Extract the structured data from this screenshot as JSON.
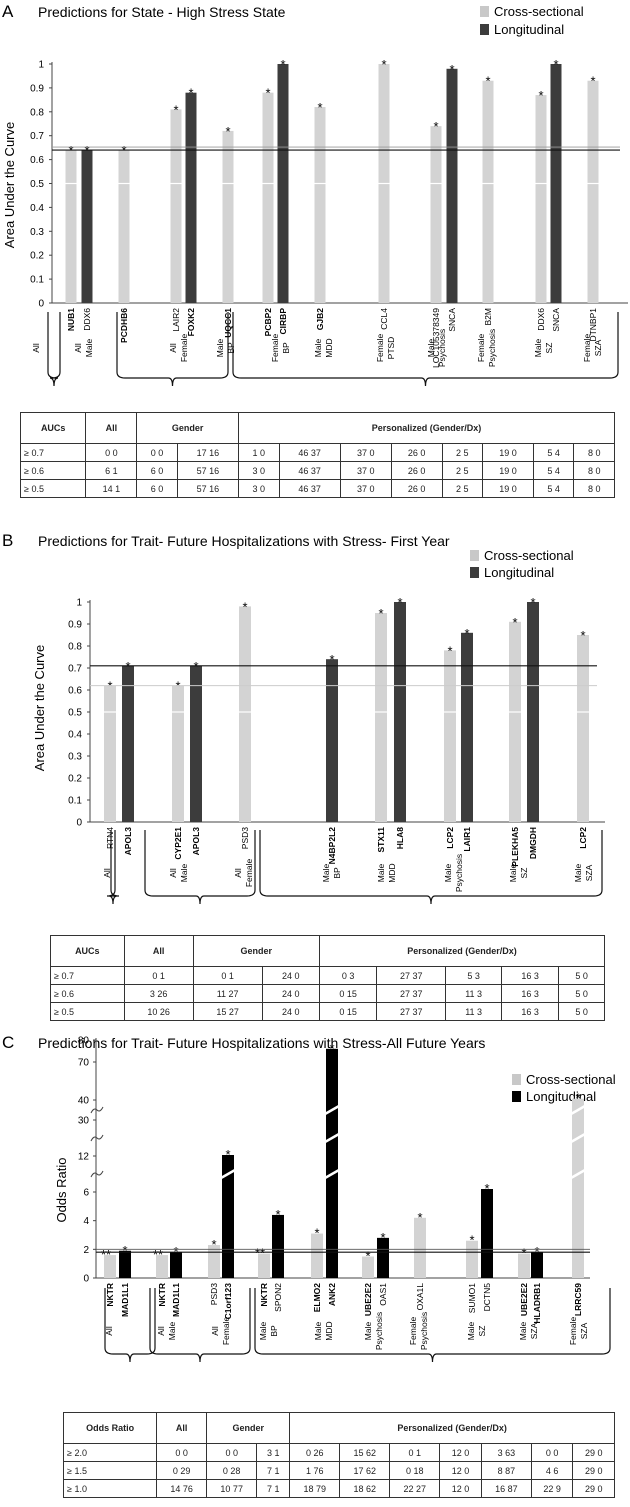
{
  "colors": {
    "cross": "#d3d3d3",
    "long_ab": "#3c3c3c",
    "long_c": "#000000",
    "thr_white": "#ffffff"
  },
  "panels": [
    {
      "letter": "A",
      "title": "Predictions for State - High Stress State",
      "legend": [
        "Cross-sectional",
        "Longitudinal"
      ],
      "chart_data": {
        "type": "bar",
        "title": "Predictions for State - High Stress State",
        "ylabel": "Area Under the Curve",
        "ylim": [
          0,
          1
        ],
        "yticks": [
          "0",
          "0.1",
          "0.2",
          "0.3",
          "0.4",
          "0.5",
          "0.6",
          "0.7",
          "0.8",
          "0.9",
          "1"
        ],
        "threshold": 0.64,
        "series": [
          {
            "name": "Cross-sectional"
          },
          {
            "name": "Longitudinal"
          }
        ],
        "bars": [
          {
            "gene": "NUB1",
            "series": "Cross-sectional",
            "value": 0.64,
            "star": true,
            "bold": true
          },
          {
            "gene": "DDX6",
            "series": "Longitudinal",
            "value": 0.64,
            "star": true,
            "bold": false
          },
          {
            "gene": "PCDHB6",
            "series": "Cross-sectional",
            "value": 0.64,
            "star": true,
            "bold": true
          },
          {
            "gene": "LAIR2",
            "series": "Cross-sectional",
            "value": 0.81,
            "star": true,
            "bold": false
          },
          {
            "gene": "FOXK2",
            "series": "Longitudinal",
            "value": 0.88,
            "star": true,
            "bold": true
          },
          {
            "gene": "UQCC1",
            "series": "Cross-sectional",
            "value": 0.72,
            "star": true,
            "bold": true
          },
          {
            "gene": "PCBP2",
            "series": "Cross-sectional",
            "value": 0.88,
            "star": true,
            "bold": true
          },
          {
            "gene": "CIRBP",
            "series": "Longitudinal",
            "value": 1.0,
            "star": true,
            "bold": true
          },
          {
            "gene": "GJB2",
            "series": "Cross-sectional",
            "value": 0.82,
            "star": true,
            "bold": true
          },
          {
            "gene": "CCL4",
            "series": "Cross-sectional",
            "value": 1.0,
            "star": true,
            "bold": false
          },
          {
            "gene": "LOC105378349",
            "series": "Cross-sectional",
            "value": 0.74,
            "star": true,
            "bold": false
          },
          {
            "gene": "SNCA",
            "series": "Longitudinal",
            "value": 0.98,
            "star": true,
            "bold": false
          },
          {
            "gene": "B2M",
            "series": "Cross-sectional",
            "value": 0.93,
            "star": true,
            "bold": false
          },
          {
            "gene": "DDX6",
            "series": "Cross-sectional",
            "value": 0.87,
            "star": true,
            "bold": false
          },
          {
            "gene": "SNCA",
            "series": "Longitudinal",
            "value": 1.0,
            "star": true,
            "bold": false
          },
          {
            "gene": "DTNBP1",
            "series": "Cross-sectional",
            "value": 0.93,
            "star": true,
            "bold": false
          }
        ],
        "groups": [
          {
            "label": [
              "All"
            ]
          },
          {
            "label": [
              "All",
              "Male"
            ]
          },
          {
            "label": [
              "All",
              "Female"
            ]
          },
          {
            "label": [
              "Male",
              "BP"
            ]
          },
          {
            "label": [
              "Female",
              "BP"
            ]
          },
          {
            "label": [
              "Male",
              "MDD"
            ]
          },
          {
            "label": [
              "Female",
              "PTSD"
            ]
          },
          {
            "label": [
              "Male",
              "Psychosis"
            ]
          },
          {
            "label": [
              "Female",
              "Psychosis"
            ]
          },
          {
            "label": [
              "Male",
              "SZ"
            ]
          },
          {
            "label": [
              "Female",
              "SZA"
            ]
          }
        ]
      },
      "table": {
        "head": [
          "AUCs",
          "All",
          "Gender",
          "Personalized (Gender/Dx)"
        ],
        "rows": [
          {
            "label": "≥ 0.7",
            "cells": [
              "0   0",
              "0   0",
              "17   16",
              "1   0",
              "46   37",
              "37   0",
              "26   0",
              "2   5",
              "19   0",
              "5   4",
              "8   0"
            ]
          },
          {
            "label": "≥ 0.6",
            "cells": [
              "6   1",
              "6   0",
              "57   16",
              "3   0",
              "46   37",
              "37   0",
              "26   0",
              "2   5",
              "19   0",
              "5   4",
              "8   0"
            ]
          },
          {
            "label": "≥ 0.5",
            "cells": [
              "14   1",
              "6   0",
              "57   16",
              "3   0",
              "46   37",
              "37   0",
              "26   0",
              "2   5",
              "19   0",
              "5   4",
              "8   0"
            ]
          }
        ]
      }
    },
    {
      "letter": "B",
      "title": "Predictions for Trait- Future Hospitalizations with Stress- First Year",
      "legend": [
        "Cross-sectional",
        "Longitudinal"
      ],
      "chart_data": {
        "type": "bar",
        "title": "Predictions for Trait- Future Hospitalizations with Stress- First Year",
        "ylabel": "Area Under the Curve",
        "ylim": [
          0,
          1
        ],
        "yticks": [
          "0",
          "0.1",
          "0.2",
          "0.3",
          "0.4",
          "0.5",
          "0.6",
          "0.7",
          "0.8",
          "0.9",
          "1"
        ],
        "threshold": 0.71,
        "threshold2": 0.62,
        "series": [
          {
            "name": "Cross-sectional"
          },
          {
            "name": "Longitudinal"
          }
        ],
        "bars": [
          {
            "gene": "RTN4",
            "series": "Cross-sectional",
            "value": 0.62,
            "star": true,
            "bold": false
          },
          {
            "gene": "APOL3",
            "series": "Longitudinal",
            "value": 0.71,
            "star": true,
            "bold": true
          },
          {
            "gene": "CYP2E1",
            "series": "Cross-sectional",
            "value": 0.62,
            "star": true,
            "bold": true
          },
          {
            "gene": "APOL3",
            "series": "Longitudinal",
            "value": 0.71,
            "star": true,
            "bold": true
          },
          {
            "gene": "PSD3",
            "series": "Cross-sectional",
            "value": 0.98,
            "star": true,
            "bold": false
          },
          {
            "gene": "N4BP2L2",
            "series": "Longitudinal",
            "value": 0.74,
            "star": true,
            "bold": true
          },
          {
            "gene": "STX11",
            "series": "Cross-sectional",
            "value": 0.95,
            "star": true,
            "bold": true
          },
          {
            "gene": "HLA8",
            "series": "Longitudinal",
            "value": 1.0,
            "star": true,
            "bold": true
          },
          {
            "gene": "LCP2",
            "series": "Cross-sectional",
            "value": 0.78,
            "star": true,
            "bold": true
          },
          {
            "gene": "LAIR1",
            "series": "Longitudinal",
            "value": 0.86,
            "star": true,
            "bold": true
          },
          {
            "gene": "PLEKHA5",
            "series": "Cross-sectional",
            "value": 0.91,
            "star": true,
            "bold": true
          },
          {
            "gene": "DMGDH",
            "series": "Longitudinal",
            "value": 1.0,
            "star": true,
            "bold": true
          },
          {
            "gene": "LCP2",
            "series": "Cross-sectional",
            "value": 0.85,
            "star": true,
            "bold": true
          }
        ],
        "groups": [
          {
            "label": [
              "All"
            ]
          },
          {
            "label": [
              "All",
              "Male"
            ]
          },
          {
            "label": [
              "All",
              "Female"
            ]
          },
          {
            "label": [
              "Male",
              "BP"
            ]
          },
          {
            "label": [
              "Male",
              "MDD"
            ]
          },
          {
            "label": [
              "Male",
              "Psychosis"
            ]
          },
          {
            "label": [
              "Male",
              "SZ"
            ]
          },
          {
            "label": [
              "Male",
              "SZA"
            ]
          }
        ]
      },
      "table": {
        "head": [
          "AUCs",
          "All",
          "Gender",
          "Personalized (Gender/Dx)"
        ],
        "rows": [
          {
            "label": "≥ 0.7",
            "cells": [
              "0   1",
              "0   1",
              "24   0",
              "0   3",
              "27   37",
              "5   3",
              "16   3",
              "5   0"
            ]
          },
          {
            "label": "≥ 0.6",
            "cells": [
              "3   26",
              "11   27",
              "24   0",
              "0   15",
              "27   37",
              "11   3",
              "16   3",
              "5   0"
            ]
          },
          {
            "label": "≥ 0.5",
            "cells": [
              "10   26",
              "15   27",
              "24   0",
              "0   15",
              "27   37",
              "11   3",
              "16   3",
              "5   0"
            ]
          }
        ]
      }
    },
    {
      "letter": "C",
      "title": "Predictions for Trait- Future Hospitalizations with Stress-All Future Years",
      "legend": [
        "Cross-sectional",
        "Longitudinal"
      ],
      "chart_data": {
        "type": "bar",
        "title": "Predictions for Trait- Future Hospitalizations with Stress-All Future Years",
        "ylabel": "Odds Ratio",
        "yticks": [
          "0",
          "2",
          "4",
          "6",
          "12",
          "30",
          "40",
          "70",
          "80"
        ],
        "axis_breaks": true,
        "threshold": 1.8,
        "threshold2": 2.0,
        "series": [
          {
            "name": "Cross-sectional"
          },
          {
            "name": "Longitudinal"
          }
        ],
        "bars": [
          {
            "gene": "NKTR",
            "series": "Cross-sectional",
            "value": 1.6,
            "star": true,
            "bold": true,
            "stars": 2
          },
          {
            "gene": "MAD1L1",
            "series": "Longitudinal",
            "value": 1.9,
            "star": true,
            "bold": true
          },
          {
            "gene": "NKTR",
            "series": "Cross-sectional",
            "value": 1.6,
            "star": true,
            "bold": true,
            "stars": 2
          },
          {
            "gene": "MAD1L1",
            "series": "Longitudinal",
            "value": 1.8,
            "star": true,
            "bold": true
          },
          {
            "gene": "PSD3",
            "series": "Cross-sectional",
            "value": 2.3,
            "star": true,
            "bold": false
          },
          {
            "gene": "C1orf123",
            "series": "Longitudinal",
            "value": 12.5,
            "star": true,
            "bold": true
          },
          {
            "gene": "NKTR",
            "series": "Cross-sectional",
            "value": 1.7,
            "star": true,
            "bold": true,
            "stars": 2
          },
          {
            "gene": "SPON2",
            "series": "Longitudinal",
            "value": 4.4,
            "star": true,
            "bold": false
          },
          {
            "gene": "ELMO2",
            "series": "Cross-sectional",
            "value": 3.1,
            "star": true,
            "bold": true
          },
          {
            "gene": "ANK2",
            "series": "Longitudinal",
            "value": 76,
            "star": true,
            "bold": true
          },
          {
            "gene": "UBE2E2",
            "series": "Cross-sectional",
            "value": 1.5,
            "star": true,
            "bold": true
          },
          {
            "gene": "OAS1",
            "series": "Longitudinal",
            "value": 2.8,
            "star": true,
            "bold": false
          },
          {
            "gene": "OXA1L",
            "series": "Cross-sectional",
            "value": 4.2,
            "star": true,
            "bold": false
          },
          {
            "gene": "SUMO1",
            "series": "Cross-sectional",
            "value": 2.6,
            "star": true,
            "bold": false
          },
          {
            "gene": "DCTN5",
            "series": "Longitudinal",
            "value": 6.5,
            "star": true,
            "bold": false
          },
          {
            "gene": "UBE2E2",
            "series": "Cross-sectional",
            "value": 1.7,
            "star": true,
            "bold": true
          },
          {
            "gene": "HLADRB1",
            "series": "Longitudinal",
            "value": 1.8,
            "star": true,
            "bold": true
          },
          {
            "gene": "LRRC59",
            "series": "Cross-sectional",
            "value": 41,
            "star": true,
            "bold": true
          }
        ],
        "groups": [
          {
            "label": [
              "All"
            ]
          },
          {
            "label": [
              "All",
              "Male"
            ]
          },
          {
            "label": [
              "All",
              "Female"
            ]
          },
          {
            "label": [
              "Male",
              "BP"
            ]
          },
          {
            "label": [
              "Male",
              "MDD"
            ]
          },
          {
            "label": [
              "Male",
              "Psychosis"
            ]
          },
          {
            "label": [
              "Female",
              "Psychosis"
            ]
          },
          {
            "label": [
              "Male",
              "SZ"
            ]
          },
          {
            "label": [
              "Male",
              "SZA"
            ]
          },
          {
            "label": [
              "Female",
              "SZA"
            ]
          }
        ]
      },
      "table": {
        "head": [
          "Odds Ratio",
          "All",
          "Gender",
          "Personalized (Gender/Dx)"
        ],
        "rows": [
          {
            "label": "≥ 2.0",
            "cells": [
              "0   0",
              "0   0",
              "3   1",
              "0   26",
              "15   62",
              "0   1",
              "12   0",
              "3   63",
              "0   0",
              "29   0"
            ]
          },
          {
            "label": "≥ 1.5",
            "cells": [
              "0   29",
              "0   28",
              "7   1",
              "1   76",
              "17   62",
              "0   18",
              "12   0",
              "8   87",
              "4   6",
              "29   0"
            ]
          },
          {
            "label": "≥ 1.0",
            "cells": [
              "14   76",
              "10   77",
              "7   1",
              "18   79",
              "18   62",
              "22   27",
              "12   0",
              "16   87",
              "22   9",
              "29   0"
            ]
          }
        ]
      }
    }
  ]
}
